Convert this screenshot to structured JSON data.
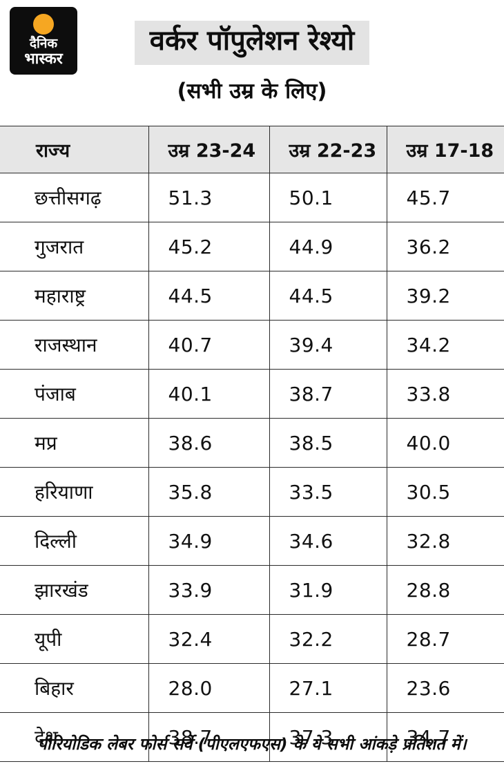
{
  "brand": {
    "logo_line1": "दैनिक",
    "logo_line2": "भास्कर"
  },
  "header": {
    "title": "वर्कर पॉपुलेशन रेश्यो",
    "subtitle": "(सभी उम्र के लिए)"
  },
  "chart_data": {
    "type": "table",
    "columns": [
      "राज्य",
      "उम्र 23-24",
      "उम्र 22-23",
      "उम्र 17-18"
    ],
    "rows": [
      {
        "state": "छत्तीसगढ़",
        "values": [
          "51.3",
          "50.1",
          "45.7"
        ]
      },
      {
        "state": "गुजरात",
        "values": [
          "45.2",
          "44.9",
          "36.2"
        ]
      },
      {
        "state": "महाराष्ट्र",
        "values": [
          "44.5",
          "44.5",
          "39.2"
        ]
      },
      {
        "state": "राजस्थान",
        "values": [
          "40.7",
          "39.4",
          "34.2"
        ]
      },
      {
        "state": "पंजाब",
        "values": [
          "40.1",
          "38.7",
          "33.8"
        ]
      },
      {
        "state": "मप्र",
        "values": [
          "38.6",
          "38.5",
          "40.0"
        ]
      },
      {
        "state": "हरियाणा",
        "values": [
          "35.8",
          "33.5",
          "30.5"
        ]
      },
      {
        "state": "दिल्ली",
        "values": [
          "34.9",
          "34.6",
          "32.8"
        ]
      },
      {
        "state": "झारखंड",
        "values": [
          "33.9",
          "31.9",
          "28.8"
        ]
      },
      {
        "state": "यूपी",
        "values": [
          "32.4",
          "32.2",
          "28.7"
        ]
      },
      {
        "state": "बिहार",
        "values": [
          "28.0",
          "27.1",
          "23.6"
        ]
      },
      {
        "state": "देश",
        "values": [
          "38.7",
          "37.3",
          "34.7"
        ]
      }
    ],
    "title": "वर्कर पॉपुलेशन रेश्यो (सभी उम्र के लिए)",
    "unit": "percent"
  },
  "footer": {
    "note": "पीरियोडिक लेबर फोर्स सर्वे (पीएलएफएस) के ये सभी आंकड़े प्रतिशत में।"
  },
  "colors": {
    "accent": "#f6a722",
    "logo_bg": "#0d0d0d",
    "title_highlight_bg": "#e3e3e3",
    "table_header_bg": "#e6e6e6",
    "border": "#2a2a2a",
    "text": "#111111"
  }
}
